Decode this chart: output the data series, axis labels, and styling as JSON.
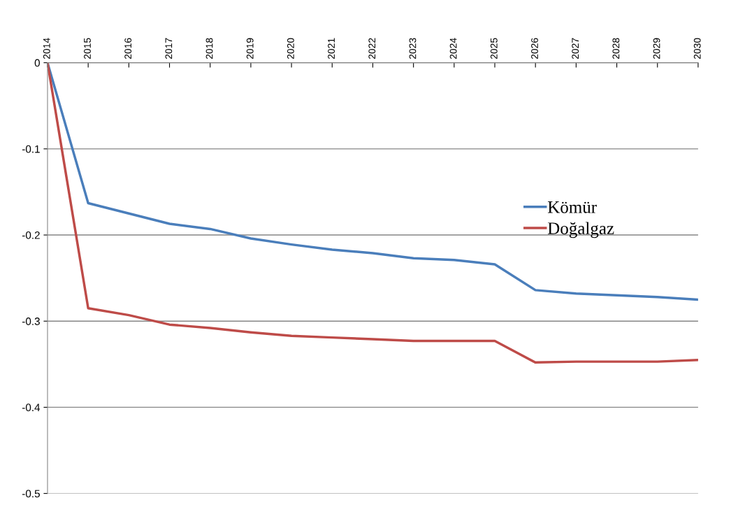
{
  "chart_data": {
    "type": "line",
    "categories": [
      "2014",
      "2015",
      "2016",
      "2017",
      "2018",
      "2019",
      "2020",
      "2021",
      "2022",
      "2023",
      "2024",
      "2025",
      "2026",
      "2027",
      "2028",
      "2029",
      "2030"
    ],
    "series": [
      {
        "name": "Kömür",
        "color": "#4a7ebb",
        "values": [
          0,
          -0.163,
          -0.175,
          -0.187,
          -0.193,
          -0.204,
          -0.211,
          -0.217,
          -0.221,
          -0.227,
          -0.229,
          -0.234,
          -0.264,
          -0.268,
          -0.27,
          -0.272,
          -0.275
        ]
      },
      {
        "name": "Doğalgaz",
        "color": "#be4b48",
        "values": [
          0,
          -0.285,
          -0.293,
          -0.304,
          -0.308,
          -0.313,
          -0.317,
          -0.319,
          -0.321,
          -0.323,
          -0.323,
          -0.323,
          -0.348,
          -0.347,
          -0.347,
          -0.347,
          -0.345
        ]
      }
    ],
    "ylim": [
      -0.5,
      0
    ],
    "yticks": [
      0,
      -0.1,
      -0.2,
      -0.3,
      -0.4,
      -0.5
    ],
    "grid": "y",
    "legend": "right",
    "marker": "none",
    "line_style": "solid"
  }
}
